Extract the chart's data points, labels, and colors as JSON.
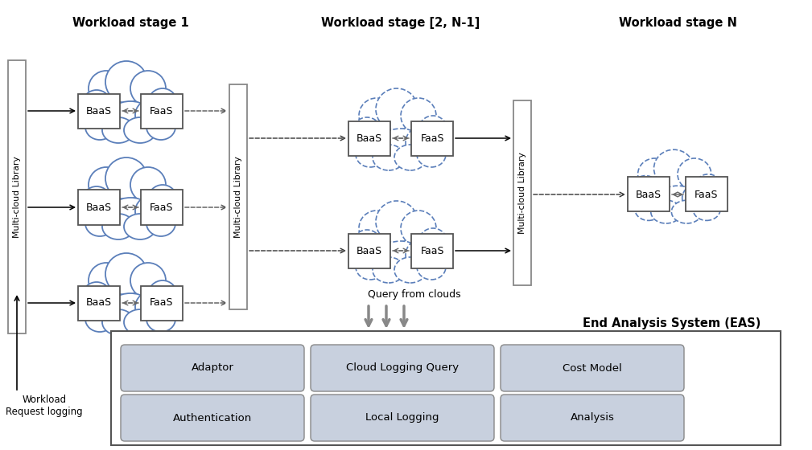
{
  "bg_color": "#ffffff",
  "cloud_color_solid": "#5b7fba",
  "cloud_color_dashed": "#5b7fba",
  "box_fill": "#ffffff",
  "box_edge": "#555555",
  "library_fill": "#ffffff",
  "library_edge": "#888888",
  "eas_fill": "#ffffff",
  "eas_edge": "#555555",
  "eas_button_fill": "#c8d0de",
  "eas_button_edge": "#888888",
  "stage1_label": "Workload stage 1",
  "stage2_label": "Workload stage [2, N-1]",
  "stageN_label": "Workload stage N",
  "library_label": "Multi-cloud Library",
  "eas_label": "End Analysis System (EAS)",
  "query_label": "Query from clouds",
  "workload_label": "Workload\nRequest logging",
  "eas_buttons": [
    "Adaptor",
    "Cloud Logging Query",
    "Cost Model",
    "Authentication",
    "Local Logging",
    "Analysis"
  ]
}
